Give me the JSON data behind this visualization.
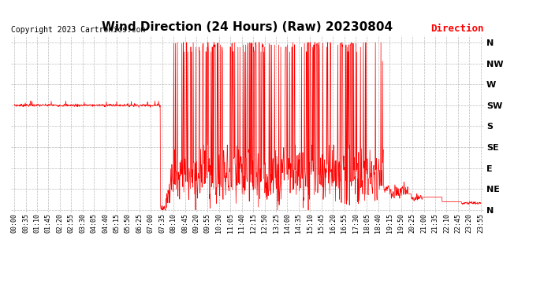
{
  "title": "Wind Direction (24 Hours) (Raw) 20230804",
  "copyright": "Copyright 2023 Cartronics.com",
  "legend_label": "Direction",
  "legend_color": "#ff0000",
  "line_color": "#ff0000",
  "background_color": "#ffffff",
  "grid_color": "#aaaaaa",
  "ylabel_labels": [
    "N",
    "NW",
    "W",
    "SW",
    "S",
    "SE",
    "E",
    "NE",
    "N"
  ],
  "ylabel_values": [
    360,
    315,
    270,
    225,
    180,
    135,
    90,
    45,
    0
  ],
  "ylim": [
    -5,
    375
  ],
  "x_tick_labels": [
    "00:00",
    "00:35",
    "01:10",
    "01:45",
    "02:20",
    "02:55",
    "03:30",
    "04:05",
    "04:40",
    "05:15",
    "05:50",
    "06:25",
    "07:00",
    "07:35",
    "08:10",
    "08:45",
    "09:20",
    "09:55",
    "10:30",
    "11:05",
    "11:40",
    "12:15",
    "12:50",
    "13:25",
    "14:00",
    "14:35",
    "15:10",
    "15:45",
    "16:20",
    "16:55",
    "17:30",
    "18:05",
    "18:40",
    "19:15",
    "19:50",
    "20:25",
    "21:00",
    "21:35",
    "22:10",
    "22:45",
    "23:20",
    "23:55"
  ],
  "title_fontsize": 11,
  "copyright_fontsize": 7,
  "axis_fontsize": 6,
  "ylabel_fontsize": 8
}
